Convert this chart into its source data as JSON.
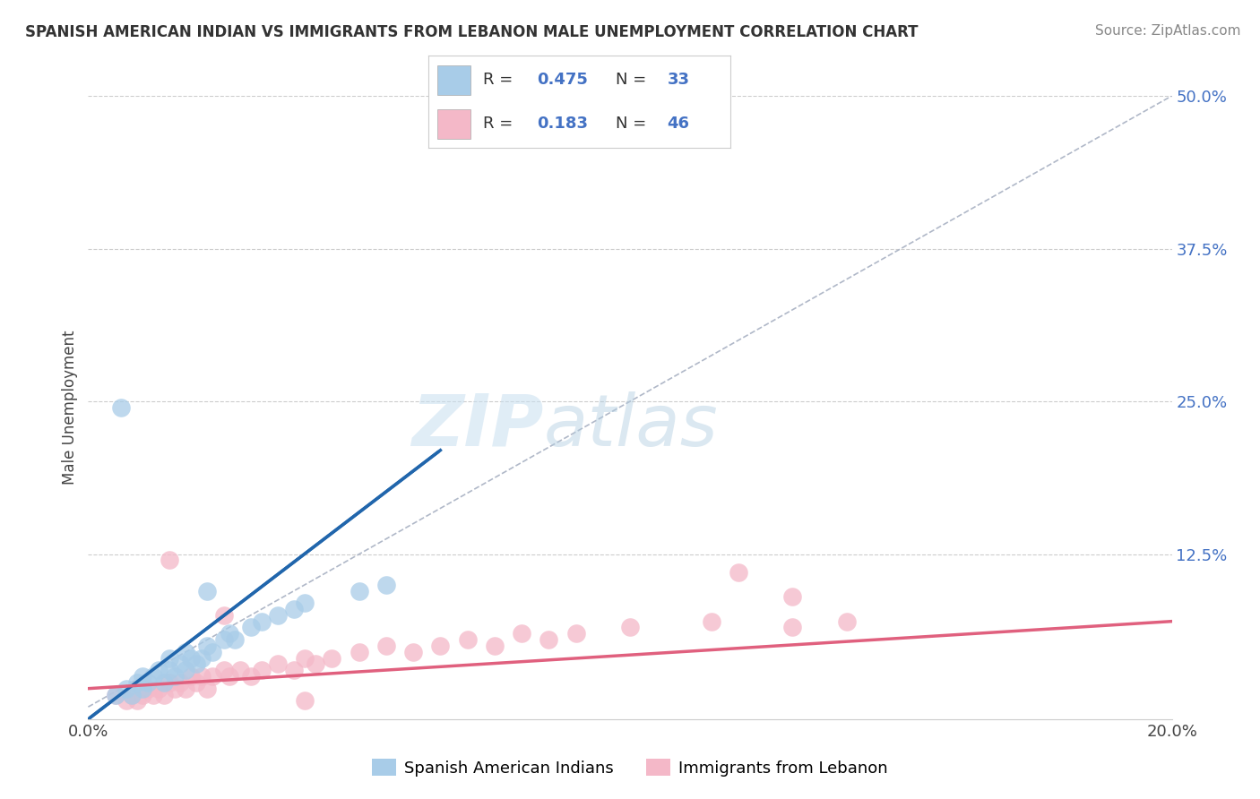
{
  "title": "SPANISH AMERICAN INDIAN VS IMMIGRANTS FROM LEBANON MALE UNEMPLOYMENT CORRELATION CHART",
  "source": "Source: ZipAtlas.com",
  "ylabel": "Male Unemployment",
  "xlim": [
    0.0,
    0.2
  ],
  "ylim": [
    -0.01,
    0.5
  ],
  "yticks": [
    0.0,
    0.125,
    0.25,
    0.375,
    0.5
  ],
  "ytick_labels": [
    "",
    "12.5%",
    "25.0%",
    "37.5%",
    "50.0%"
  ],
  "xticks": [
    0.0,
    0.05,
    0.1,
    0.15,
    0.2
  ],
  "xtick_labels": [
    "0.0%",
    "",
    "",
    "",
    "20.0%"
  ],
  "color_blue": "#a8cce8",
  "color_pink": "#f4b8c8",
  "color_blue_line": "#2166ac",
  "color_pink_line": "#e0607e",
  "R_blue": 0.475,
  "N_blue": 33,
  "R_pink": 0.183,
  "N_pink": 46,
  "legend_label_blue": "Spanish American Indians",
  "legend_label_pink": "Immigrants from Lebanon",
  "blue_scatter_x": [
    0.005,
    0.007,
    0.008,
    0.009,
    0.01,
    0.01,
    0.011,
    0.012,
    0.013,
    0.014,
    0.015,
    0.015,
    0.016,
    0.017,
    0.018,
    0.018,
    0.019,
    0.02,
    0.021,
    0.022,
    0.023,
    0.025,
    0.026,
    0.027,
    0.03,
    0.032,
    0.035,
    0.038,
    0.04,
    0.05,
    0.055,
    0.006,
    0.022
  ],
  "blue_scatter_y": [
    0.01,
    0.015,
    0.01,
    0.02,
    0.015,
    0.025,
    0.02,
    0.025,
    0.03,
    0.02,
    0.03,
    0.04,
    0.025,
    0.035,
    0.03,
    0.045,
    0.04,
    0.035,
    0.04,
    0.05,
    0.045,
    0.055,
    0.06,
    0.055,
    0.065,
    0.07,
    0.075,
    0.08,
    0.085,
    0.095,
    0.1,
    0.245,
    0.095
  ],
  "pink_scatter_x": [
    0.005,
    0.007,
    0.008,
    0.009,
    0.01,
    0.011,
    0.012,
    0.013,
    0.014,
    0.015,
    0.016,
    0.017,
    0.018,
    0.019,
    0.02,
    0.021,
    0.022,
    0.023,
    0.025,
    0.026,
    0.028,
    0.03,
    0.032,
    0.035,
    0.038,
    0.04,
    0.042,
    0.045,
    0.05,
    0.055,
    0.06,
    0.065,
    0.07,
    0.075,
    0.08,
    0.085,
    0.09,
    0.1,
    0.115,
    0.12,
    0.13,
    0.14,
    0.015,
    0.025,
    0.04,
    0.13
  ],
  "pink_scatter_y": [
    0.01,
    0.005,
    0.01,
    0.005,
    0.01,
    0.015,
    0.01,
    0.015,
    0.01,
    0.02,
    0.015,
    0.02,
    0.015,
    0.025,
    0.02,
    0.025,
    0.015,
    0.025,
    0.03,
    0.025,
    0.03,
    0.025,
    0.03,
    0.035,
    0.03,
    0.04,
    0.035,
    0.04,
    0.045,
    0.05,
    0.045,
    0.05,
    0.055,
    0.05,
    0.06,
    0.055,
    0.06,
    0.065,
    0.07,
    0.11,
    0.065,
    0.07,
    0.12,
    0.075,
    0.005,
    0.09
  ],
  "blue_line_x0": 0.0,
  "blue_line_y0": -0.01,
  "blue_line_x1": 0.065,
  "blue_line_y1": 0.21,
  "pink_line_x0": 0.0,
  "pink_line_y0": 0.015,
  "pink_line_x1": 0.2,
  "pink_line_y1": 0.07
}
